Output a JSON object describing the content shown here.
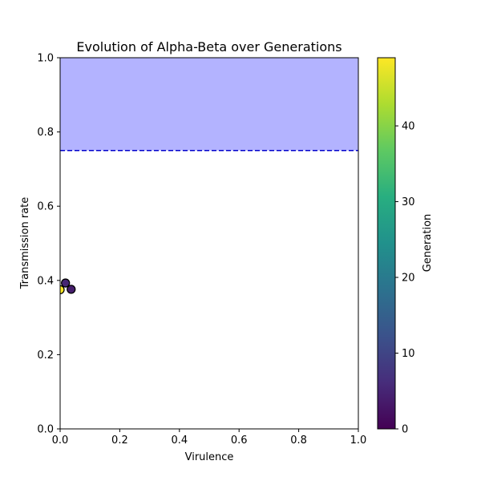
{
  "chart_data": {
    "type": "scatter",
    "title": "Evolution of Alpha-Beta over Generations",
    "xlabel": "Virulence",
    "ylabel": "Transmission rate",
    "xlim": [
      0,
      1
    ],
    "ylim": [
      0,
      1
    ],
    "xticks": [
      "0.0",
      "0.2",
      "0.4",
      "0.6",
      "0.8",
      "1.0"
    ],
    "yticks": [
      "0.0",
      "0.2",
      "0.4",
      "0.6",
      "0.8",
      "1.0"
    ],
    "grid": false,
    "threshold": {
      "y": 0.75,
      "style": "dashed",
      "color": "#0000cc",
      "shaded_region": {
        "from": 0.75,
        "to": 1.0,
        "color": "#b3b3ff"
      }
    },
    "points": [
      {
        "x": 0.0,
        "y": 0.375,
        "generation": 49
      },
      {
        "x": 0.018,
        "y": 0.393,
        "generation": 5
      },
      {
        "x": 0.037,
        "y": 0.376,
        "generation": 4
      }
    ],
    "colorbar": {
      "label": "Generation",
      "colormap": "viridis",
      "range": [
        0,
        49
      ],
      "ticks": [
        "0",
        "10",
        "20",
        "30",
        "40"
      ],
      "tick_values": [
        0,
        10,
        20,
        30,
        40
      ]
    }
  }
}
